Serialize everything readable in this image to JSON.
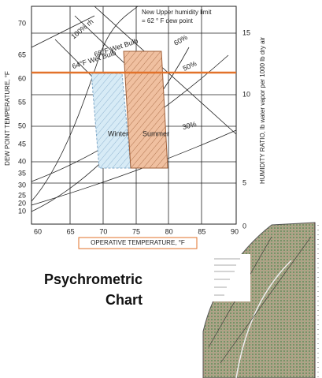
{
  "comfort_chart": {
    "y_axis_label": "DEW POINT TEMPERATURE, °F",
    "y2_axis_label": "HUMIDITY RATIO, lb water vapor per 1000 lb dry air",
    "x_axis_label": "OPERATIVE TEMPERATURE, °F",
    "y_ticks": [
      "70",
      "65",
      "60",
      "55",
      "50",
      "45",
      "40",
      "35",
      "30",
      "25",
      "20",
      "10"
    ],
    "y2_ticks": [
      "15",
      "10",
      "5",
      "0"
    ],
    "x_ticks": [
      "60",
      "65",
      "70",
      "75",
      "80",
      "85",
      "90"
    ],
    "limit_note": [
      "New Upper humidity limit",
      "= 62 ° F dew point"
    ],
    "curve_labels": [
      "100% rh",
      "68°F Wet Bulb",
      "64°F Wet Bulb",
      "60%",
      "50%",
      "30%"
    ],
    "zones": [
      "Winter",
      "Summer"
    ]
  },
  "caption": [
    "Psychrometric",
    "Chart"
  ]
}
